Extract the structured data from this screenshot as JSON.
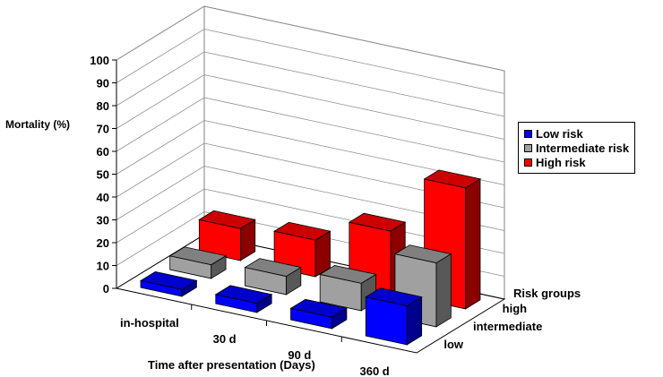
{
  "chart_data": {
    "type": "bar3d",
    "title": "",
    "xlabel": "Time after presentation (Days)",
    "ylabel": "Mortality (%)",
    "zlabel": "Risk groups",
    "categories": [
      "in-hospital",
      "30 d",
      "90 d",
      "360 d"
    ],
    "depth_labels": [
      "low",
      "intermediate",
      "high"
    ],
    "ylim": [
      0,
      100
    ],
    "yticks": [
      0,
      10,
      20,
      30,
      40,
      50,
      60,
      70,
      80,
      90,
      100
    ],
    "grid": true,
    "legend_position": "right",
    "series": [
      {
        "name": "Low risk",
        "color": "#0000ff",
        "values": [
          3,
          4,
          5,
          17
        ]
      },
      {
        "name": "Intermediate risk",
        "color": "#a0a0a0",
        "values": [
          6,
          8,
          12,
          28
        ]
      },
      {
        "name": "High risk",
        "color": "#ff0000",
        "values": [
          14,
          16,
          27,
          53
        ]
      }
    ]
  }
}
